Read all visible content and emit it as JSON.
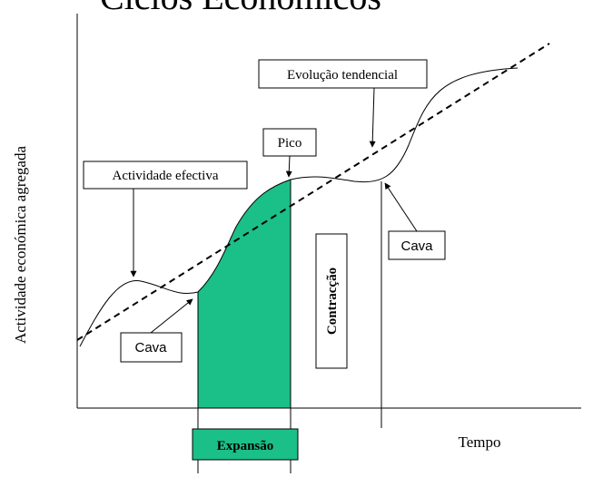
{
  "title": "Ciclos Económicos",
  "y_axis_label": "Actividade económica agregada",
  "x_axis_label": "Tempo",
  "labels": {
    "actual": "Actividade efectiva",
    "trend": "Evolução tendencial",
    "peak": "Pico",
    "trough_left": "Cava",
    "trough_right": "Cava",
    "contraction": "Contracção",
    "expansion": "Expansão"
  }
}
